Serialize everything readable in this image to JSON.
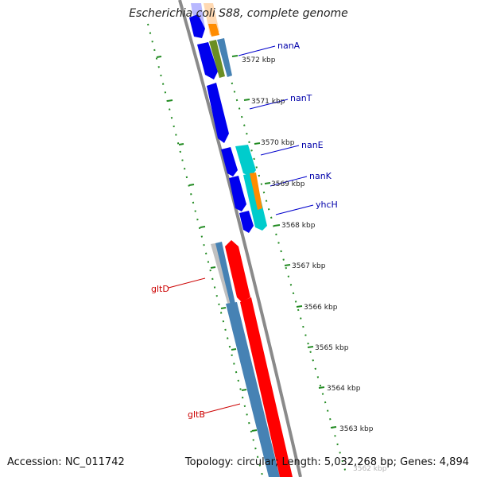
{
  "title": "Escherichia coli S88, complete genome",
  "footer": {
    "accession": "Accession: NC_011742",
    "summary": "Topology: circular; Length: 5,032,268 bp; Genes: 4,894"
  },
  "ticks": [
    "3572 kbp",
    "3571 kbp",
    "3570 kbp",
    "3569 kbp",
    "3568 kbp",
    "3567 kbp",
    "3566 kbp",
    "3565 kbp",
    "3564 kbp",
    "3563 kbp",
    "3562 kbp"
  ],
  "labels": {
    "nanA": "nanA",
    "nanT": "nanT",
    "nanE": "nanE",
    "nanK": "nanK",
    "yhcH": "yhcH",
    "gltD": "gltD",
    "gltB": "gltB"
  },
  "colors": {
    "cds_forward": "#0000ee",
    "cds_highlight": "#ff0000",
    "steelblue": "#4682b4",
    "cyan": "#00cccc",
    "orange": "#ff8c00",
    "olive": "#6b8e23",
    "label_blue": "#0000aa",
    "label_red": "#cc0000",
    "backbone": "#888888",
    "tick": "#228b22"
  }
}
